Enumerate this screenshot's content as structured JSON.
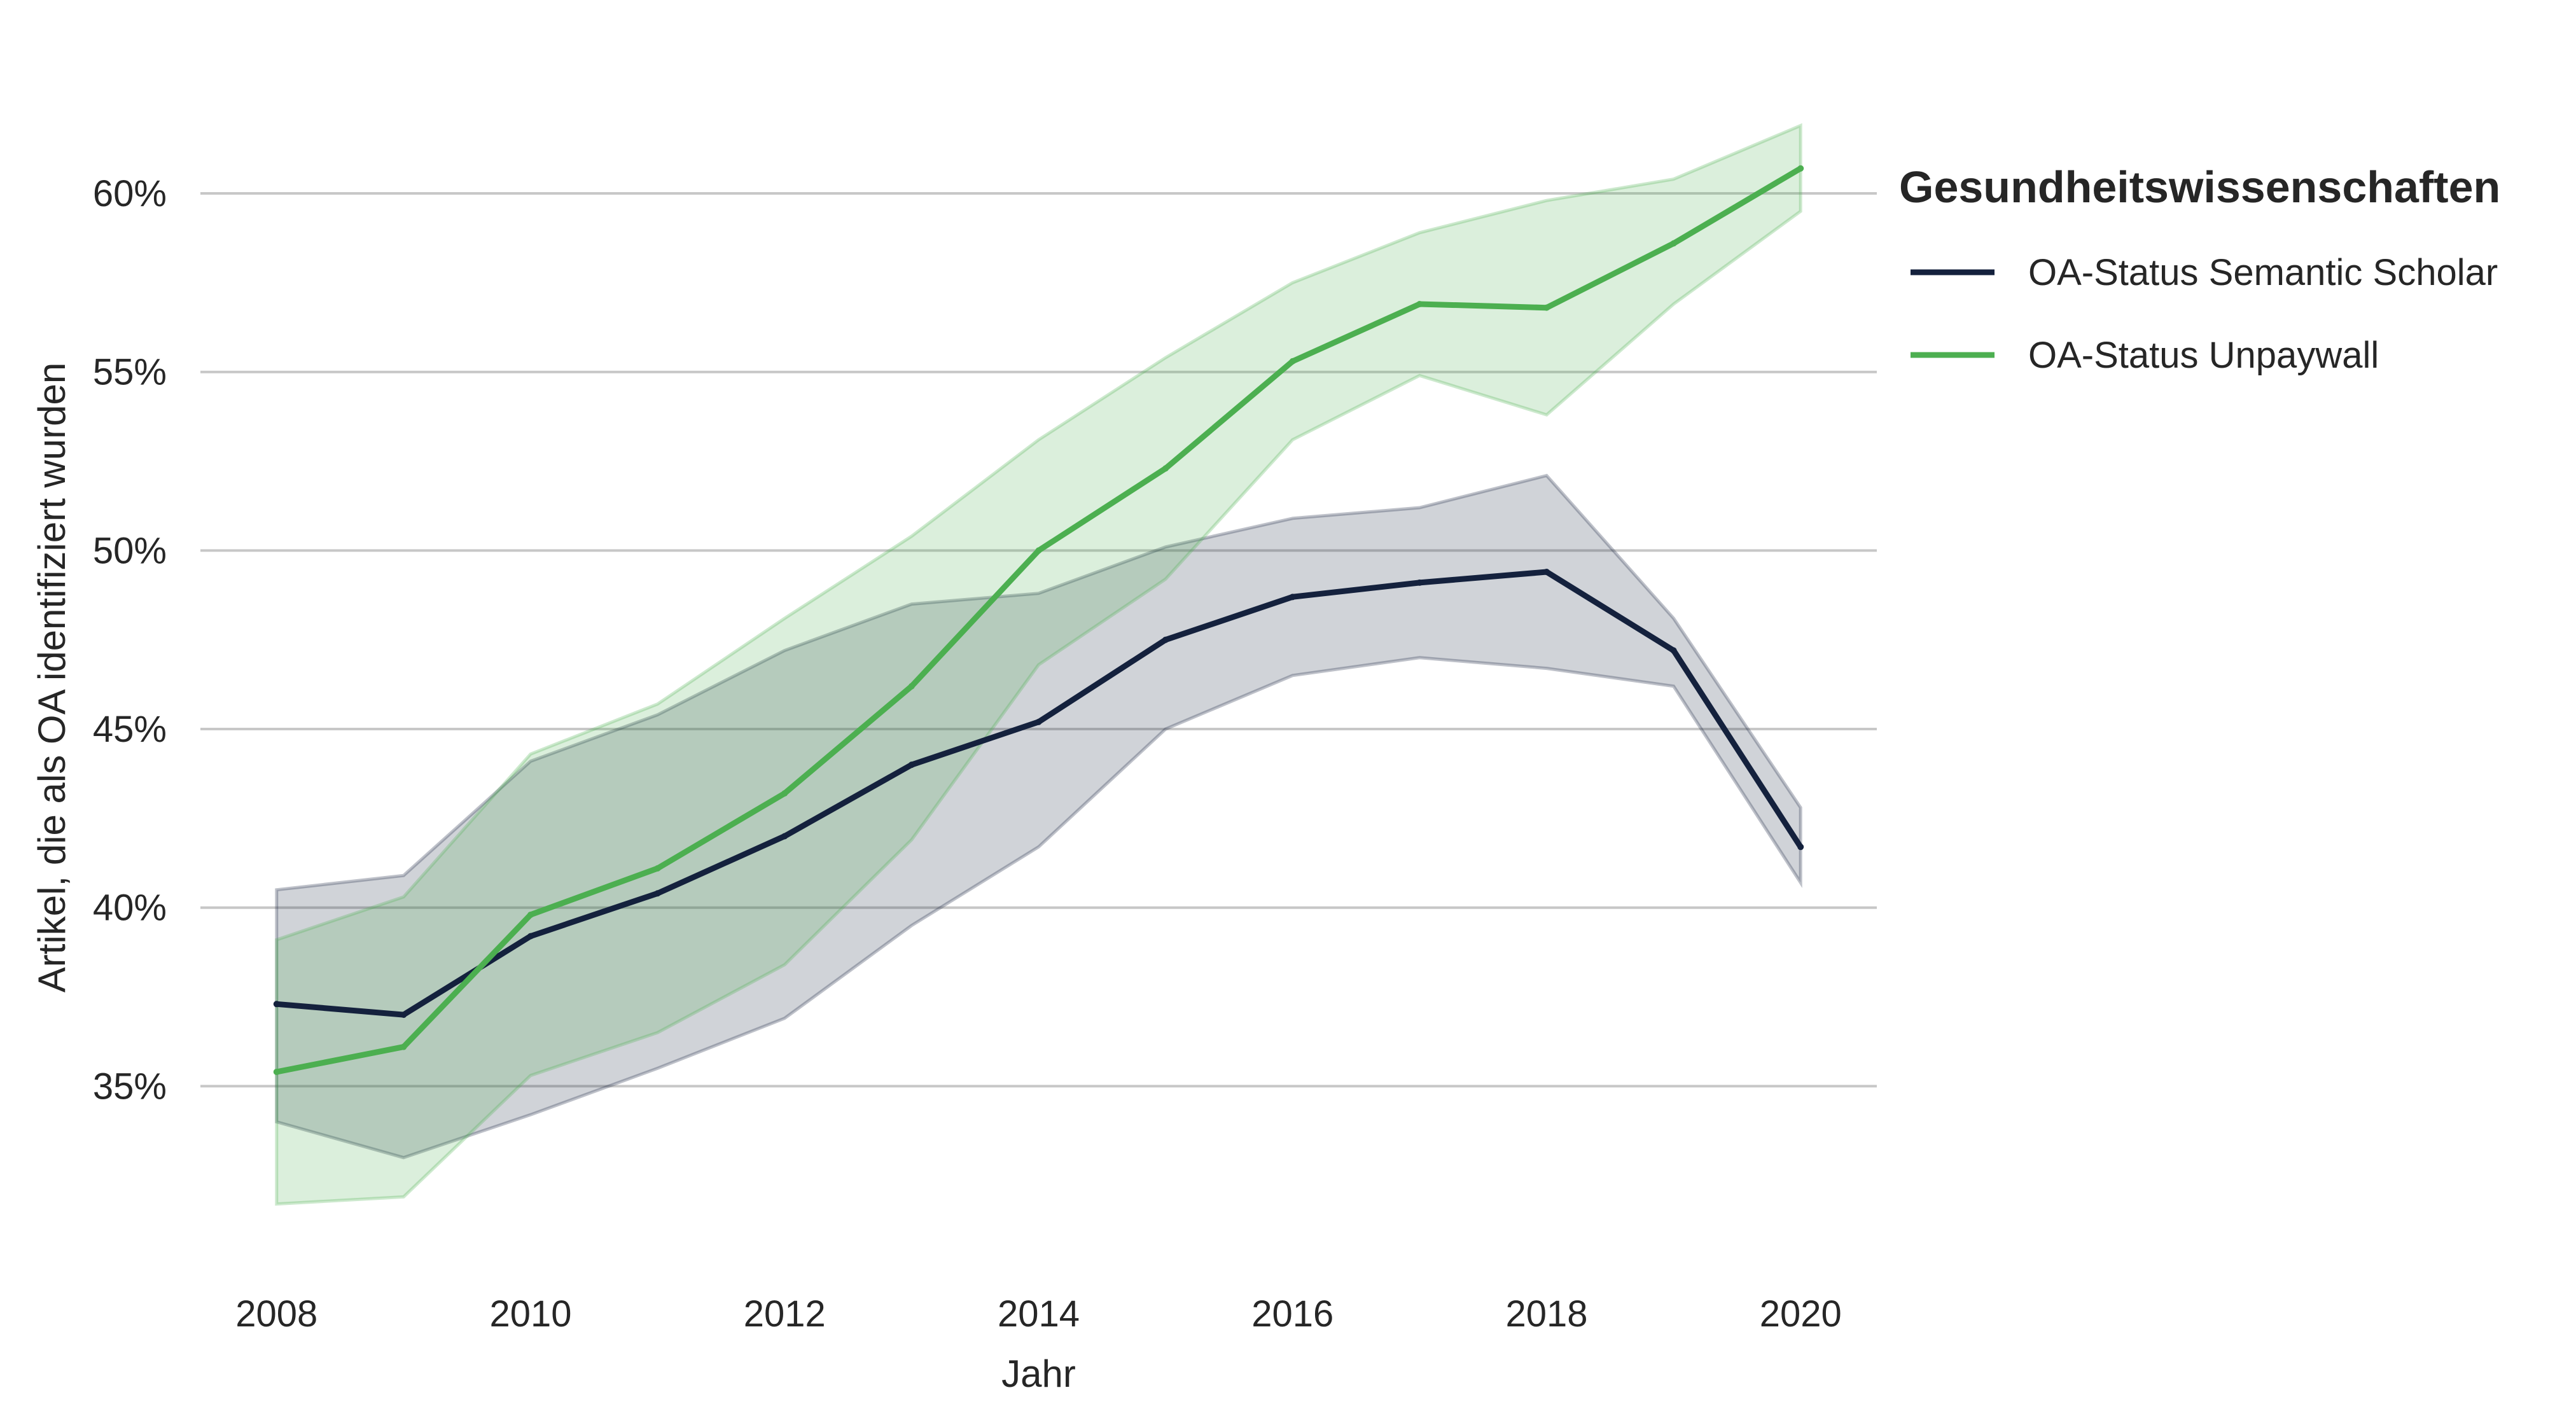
{
  "chart_data": {
    "type": "line",
    "xlabel": "Jahr",
    "ylabel": "Artikel, die als OA identifiziert wurden",
    "x": [
      2008,
      2009,
      2010,
      2011,
      2012,
      2013,
      2014,
      2015,
      2016,
      2017,
      2018,
      2019,
      2020
    ],
    "x_ticks": [
      "2008",
      "2010",
      "2012",
      "2014",
      "2016",
      "2018",
      "2020"
    ],
    "y_ticks": [
      "35%",
      "40%",
      "45%",
      "50%",
      "55%",
      "60%"
    ],
    "xlim": [
      2007.4,
      2020.6
    ],
    "ylim": [
      30.5,
      63.1
    ],
    "grid": "horizontal",
    "legend": {
      "title": "Gesundheitswissenschaften",
      "placement": "right"
    },
    "series": [
      {
        "name": "OA-Status Semantic Scholar",
        "color": "#14213d",
        "values": [
          37.3,
          37.0,
          39.2,
          40.4,
          42.0,
          44.0,
          45.2,
          47.5,
          48.7,
          49.1,
          49.4,
          47.2,
          41.7
        ],
        "lower": [
          34.0,
          33.0,
          34.2,
          35.5,
          36.9,
          39.5,
          41.7,
          45.0,
          46.5,
          47.0,
          46.7,
          46.2,
          40.7
        ],
        "upper": [
          40.5,
          40.9,
          44.1,
          45.4,
          47.2,
          48.5,
          48.8,
          50.1,
          50.9,
          51.2,
          52.1,
          48.1,
          42.8
        ]
      },
      {
        "name": "OA-Status Unpaywall",
        "color": "#4caf50",
        "values": [
          35.4,
          36.1,
          39.8,
          41.1,
          43.2,
          46.2,
          50.0,
          52.3,
          55.3,
          56.9,
          56.8,
          58.6,
          60.7
        ],
        "lower": [
          31.7,
          31.9,
          35.3,
          36.5,
          38.4,
          41.9,
          46.8,
          49.2,
          53.1,
          54.9,
          53.8,
          56.9,
          59.5
        ],
        "upper": [
          39.1,
          40.3,
          44.3,
          45.7,
          48.1,
          50.4,
          53.1,
          55.4,
          57.5,
          58.9,
          59.8,
          60.4,
          61.9
        ]
      }
    ]
  }
}
